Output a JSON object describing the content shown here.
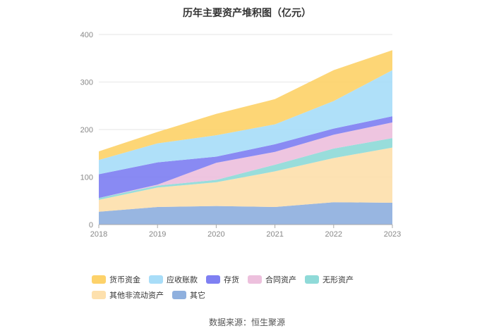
{
  "chart_data": {
    "type": "area",
    "stacked": true,
    "title": "历年主要资产堆积图（亿元）",
    "x": [
      "2018",
      "2019",
      "2020",
      "2021",
      "2022",
      "2023"
    ],
    "ylim": [
      0,
      400
    ],
    "yticks": [
      0,
      100,
      200,
      300,
      400
    ],
    "grid": true,
    "legend_position": "bottom",
    "series": [
      {
        "name": "其它",
        "color": "#8fb0de",
        "values": [
          27,
          37,
          39,
          37,
          47,
          46
        ]
      },
      {
        "name": "其他非流动资产",
        "color": "#fde0ad",
        "values": [
          25,
          41,
          50,
          75,
          93,
          116
        ]
      },
      {
        "name": "无形资产",
        "color": "#8fdad8",
        "values": [
          4,
          4,
          5,
          14,
          20,
          20
        ]
      },
      {
        "name": "合同资产",
        "color": "#edc0dd",
        "values": [
          0,
          2,
          36,
          27,
          29,
          33
        ]
      },
      {
        "name": "存货",
        "color": "#7f80f2",
        "values": [
          50,
          47,
          13,
          16,
          13,
          13
        ]
      },
      {
        "name": "应收账款",
        "color": "#a8ddf8",
        "values": [
          30,
          40,
          45,
          42,
          58,
          97
        ]
      },
      {
        "name": "货币资金",
        "color": "#fdd26a",
        "values": [
          18,
          24,
          45,
          53,
          65,
          42
        ]
      }
    ],
    "legend_order": [
      "货币资金",
      "应收账款",
      "存货",
      "合同资产",
      "无形资产",
      "其他非流动资产",
      "其它"
    ]
  },
  "source_text": "数据来源：恒生聚源"
}
